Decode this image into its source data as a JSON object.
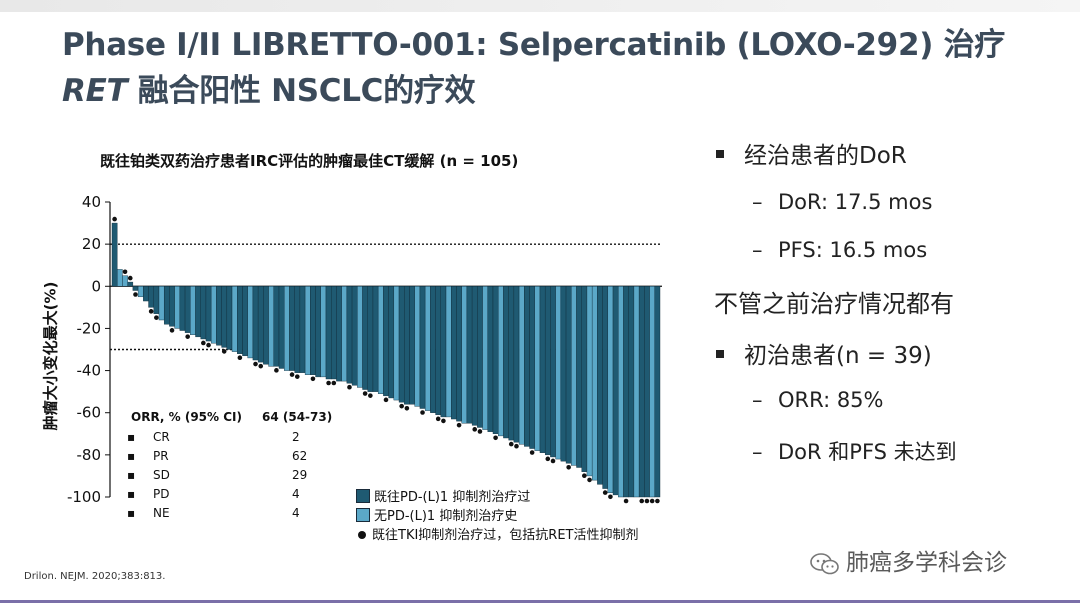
{
  "title": {
    "line1": "Phase I/II LIBRETTO-001: Selpercatinib (LOXO-292) 治疗",
    "line2_italic": "RET",
    "line2_rest": " 融合阳性 NSCLC的疗效"
  },
  "chart_data": {
    "type": "bar",
    "title": "既往铂类双药治疗患者IRC评估的肿瘤最佳CT缓解  (n = 105)",
    "ylabel": "肿瘤大小变化最大(%)",
    "ylim": [
      -100,
      40
    ],
    "yticks": [
      "40",
      "20",
      "0",
      "-20",
      "-40",
      "-60",
      "-80",
      "-100"
    ],
    "reference_lines": [
      20,
      -30
    ],
    "values": [
      30,
      8,
      5,
      2,
      -2,
      -5,
      -7,
      -10,
      -13,
      -16,
      -18,
      -19,
      -20,
      -21,
      -22,
      -23,
      -24,
      -25,
      -26,
      -27,
      -28,
      -29,
      -30,
      -31,
      -32,
      -33,
      -34,
      -35,
      -36,
      -37,
      -38,
      -38,
      -39,
      -40,
      -40,
      -41,
      -41,
      -42,
      -42,
      -43,
      -43,
      -44,
      -44,
      -45,
      -45,
      -46,
      -47,
      -48,
      -49,
      -50,
      -50,
      -51,
      -52,
      -53,
      -54,
      -55,
      -56,
      -56,
      -57,
      -58,
      -59,
      -60,
      -61,
      -62,
      -62,
      -63,
      -64,
      -65,
      -65,
      -66,
      -67,
      -68,
      -69,
      -70,
      -71,
      -72,
      -73,
      -74,
      -75,
      -76,
      -77,
      -78,
      -79,
      -80,
      -81,
      -82,
      -83,
      -84,
      -85,
      -86,
      -88,
      -90,
      -92,
      -94,
      -96,
      -98,
      -99,
      -100,
      -100,
      -100,
      -100,
      -100,
      -100,
      -100,
      -100
    ],
    "series_flag": [
      1,
      0,
      0,
      1,
      1,
      0,
      1,
      1,
      1,
      0,
      1,
      1,
      0,
      1,
      1,
      0,
      1,
      1,
      1,
      0,
      1,
      1,
      1,
      0,
      1,
      1,
      0,
      1,
      1,
      1,
      0,
      1,
      1,
      0,
      1,
      1,
      1,
      0,
      1,
      1,
      0,
      1,
      1,
      1,
      0,
      1,
      1,
      0,
      1,
      1,
      1,
      0,
      1,
      1,
      0,
      1,
      1,
      1,
      0,
      1,
      0,
      1,
      1,
      1,
      0,
      1,
      1,
      0,
      1,
      1,
      1,
      0,
      1,
      1,
      0,
      1,
      1,
      1,
      0,
      1,
      1,
      0,
      1,
      1,
      1,
      0,
      1,
      1,
      0,
      1,
      1,
      0,
      0,
      1,
      1,
      0,
      1,
      0,
      1,
      1,
      0,
      1,
      1,
      0,
      1
    ],
    "tki_dot": [
      1,
      0,
      1,
      1,
      1,
      0,
      0,
      1,
      1,
      0,
      0,
      1,
      0,
      0,
      1,
      0,
      0,
      1,
      1,
      0,
      0,
      1,
      0,
      0,
      1,
      0,
      0,
      1,
      1,
      0,
      0,
      1,
      0,
      0,
      1,
      1,
      0,
      0,
      1,
      0,
      0,
      1,
      1,
      0,
      0,
      1,
      0,
      0,
      1,
      1,
      0,
      0,
      1,
      0,
      0,
      1,
      1,
      0,
      0,
      1,
      0,
      0,
      1,
      1,
      0,
      0,
      1,
      0,
      0,
      1,
      1,
      0,
      0,
      1,
      0,
      0,
      1,
      1,
      0,
      0,
      1,
      0,
      0,
      1,
      1,
      0,
      0,
      1,
      0,
      0,
      1,
      1,
      0,
      0,
      1,
      1,
      0,
      0,
      1,
      0,
      0,
      1,
      1,
      1,
      1
    ],
    "series": [
      {
        "name": "既往PD-(L)1 抑制剂治疗过",
        "color": "#1f5a72"
      },
      {
        "name": "无PD-(L)1 抑制剂治疗史",
        "color": "#5ba8c8"
      }
    ],
    "dot_legend": "既往TKI抑制剂治疗过，包括抗RET活性抑制剂",
    "orr_table": {
      "header_label": "ORR, % (95% CI)",
      "header_value": "64 (54-73)",
      "rows": [
        {
          "label": "CR",
          "value": "2"
        },
        {
          "label": "PR",
          "value": "62"
        },
        {
          "label": "SD",
          "value": "29"
        },
        {
          "label": "PD",
          "value": "4"
        },
        {
          "label": "NE",
          "value": "4"
        }
      ]
    }
  },
  "bullets": {
    "b1": "经治患者的DoR",
    "b1_sub1": "DoR: 17.5 mos",
    "b1_sub2": "PFS: 16.5 mos",
    "plain": "不管之前治疗情况都有",
    "b2": "初治患者(n = 39)",
    "b2_sub1": "ORR: 85%",
    "b2_sub2": "DoR 和PFS 未达到"
  },
  "citation": "Drilon. NEJM. 2020;383:813.",
  "watermark": "肺癌多学科会诊",
  "colors": {
    "title": "#3b4a5a",
    "accent_line": "#7a6fa8"
  }
}
